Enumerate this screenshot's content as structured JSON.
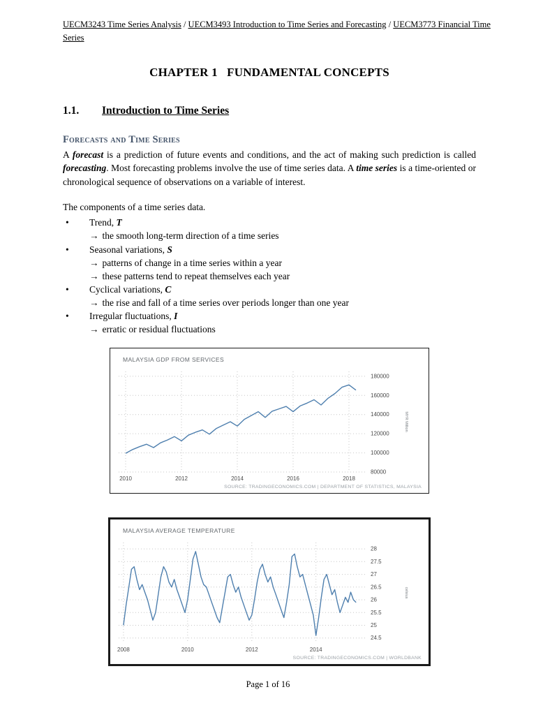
{
  "header": {
    "links": [
      "UECM3243 Time Series Analysis",
      "UECM3493 Introduction to Time Series and Forecasting",
      "UECM3773 Financial Time Series"
    ],
    "separator": " / "
  },
  "title": "CHAPTER 1   FUNDAMENTAL CONCEPTS",
  "section": {
    "number": "1.1.",
    "title": "Introduction to Time Series"
  },
  "subsection_heading": "Forecasts and Time Series",
  "intro_paragraph": {
    "segments": [
      {
        "t": "A "
      },
      {
        "t": "forecast",
        "bi": true
      },
      {
        "t": " is a prediction of future events and conditions, and the act of making such prediction is called "
      },
      {
        "t": "forecasting",
        "bi": true
      },
      {
        "t": ". Most forecasting problems involve the use of time series data. A "
      },
      {
        "t": "time series",
        "bi": true
      },
      {
        "t": " is a time-oriented or chronological sequence of observations on a variable of interest."
      }
    ]
  },
  "components": {
    "lead": "The components of a time series data.",
    "bullet_char": "•",
    "arrow_char": "→",
    "items": [
      {
        "text": "Trend,",
        "var": "T",
        "subs": [
          "the smooth long-term direction of a time series"
        ]
      },
      {
        "text": "Seasonal variations,",
        "var": "S",
        "subs": [
          "patterns of change in a time series within a year",
          "these patterns tend to repeat themselves each year"
        ]
      },
      {
        "text": "Cyclical variations,",
        "var": "C",
        "subs": [
          "the rise and fall of a time series over periods longer than one year"
        ]
      },
      {
        "text": "Irregular fluctuations,",
        "var": "I",
        "subs": [
          "erratic or residual fluctuations"
        ]
      }
    ]
  },
  "chart_data": [
    {
      "type": "line",
      "title": "MALAYSIA GDP FROM SERVICES",
      "ylabel": "MYR Million",
      "source": "SOURCE: TRADINGECONOMICS.COM | DEPARTMENT OF STATISTICS, MALAYSIA",
      "color": "#4e7fae",
      "xlim": [
        2009.75,
        2018.6
      ],
      "ylim": [
        80000,
        185000
      ],
      "xticks": [
        2010,
        2012,
        2014,
        2016,
        2018
      ],
      "yticks": [
        80000,
        100000,
        120000,
        140000,
        160000,
        180000
      ],
      "x_start": 2010.0,
      "x_step": 0.25,
      "values": [
        99500,
        103500,
        106500,
        109000,
        105500,
        110500,
        113500,
        117000,
        112500,
        118500,
        121500,
        124000,
        119500,
        125500,
        129000,
        132500,
        128000,
        135000,
        139000,
        143000,
        137000,
        143500,
        146000,
        148500,
        143000,
        149000,
        152000,
        155500,
        150000,
        157000,
        162000,
        168500,
        171000,
        165500
      ]
    },
    {
      "type": "line",
      "title": "MALAYSIA AVERAGE TEMPERATURE",
      "ylabel": "celsius",
      "source": "SOURCE: TRADINGECONOMICS.COM | WORLDBANK",
      "color": "#4e7fae",
      "xlim": [
        2007.85,
        2015.55
      ],
      "ylim": [
        24.3,
        28.25
      ],
      "xticks": [
        2008,
        2010,
        2012,
        2014
      ],
      "yticks": [
        24.5,
        25,
        25.5,
        26,
        26.5,
        27,
        27.5,
        28
      ],
      "x_start": 2008.0,
      "x_step": 0.0833333,
      "values": [
        25.0,
        25.8,
        26.5,
        27.2,
        27.3,
        26.8,
        26.4,
        26.6,
        26.3,
        26.0,
        25.6,
        25.2,
        25.5,
        26.2,
        26.9,
        27.3,
        27.1,
        26.7,
        26.5,
        26.8,
        26.4,
        26.1,
        25.8,
        25.5,
        26.0,
        26.8,
        27.6,
        27.9,
        27.4,
        26.9,
        26.6,
        26.5,
        26.2,
        25.9,
        25.6,
        25.3,
        25.1,
        25.7,
        26.3,
        26.9,
        27.0,
        26.6,
        26.3,
        26.5,
        26.1,
        25.8,
        25.5,
        25.2,
        25.4,
        26.0,
        26.7,
        27.2,
        27.4,
        27.0,
        26.7,
        26.9,
        26.5,
        26.2,
        25.9,
        25.6,
        25.3,
        25.9,
        26.6,
        27.7,
        27.8,
        27.3,
        26.9,
        27.0,
        26.6,
        26.2,
        25.8,
        25.4,
        24.6,
        25.3,
        26.1,
        26.8,
        27.0,
        26.6,
        26.2,
        26.4,
        25.9,
        25.5,
        25.8,
        26.1,
        25.9,
        26.3,
        26.0,
        25.9
      ]
    }
  ],
  "page": {
    "footer": "Page 1 of 16"
  }
}
